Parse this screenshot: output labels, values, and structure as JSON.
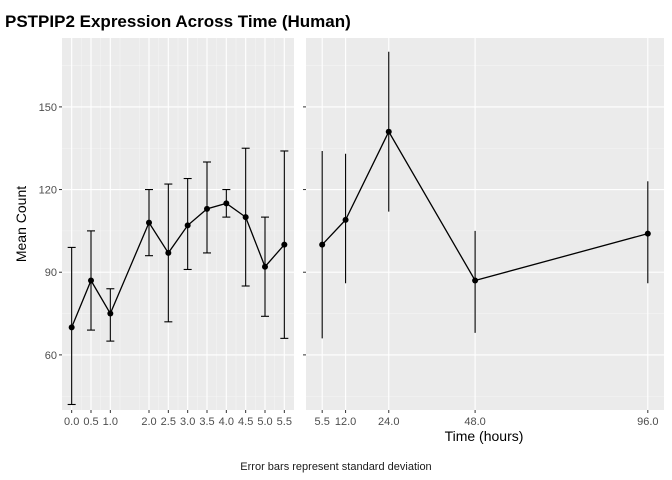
{
  "chart_data": {
    "type": "line",
    "title": "PSTPIP2 Expression Across Time (Human)",
    "xlabel": "Time (hours)",
    "ylabel": "Mean Count",
    "caption": "Error bars represent standard deviation",
    "ylim": [
      40,
      175
    ],
    "y_ticks": [
      60,
      90,
      120,
      150
    ],
    "grid": true,
    "panels": [
      {
        "x_ticks": [
          "0.0",
          "0.5",
          "1.0",
          "2.0",
          "2.5",
          "3.0",
          "3.5",
          "4.0",
          "4.5",
          "5.0",
          "5.5"
        ],
        "x_minor_ticks": [
          0.25,
          0.75,
          1.25,
          1.75,
          2.25,
          2.75,
          3.25,
          3.75,
          4.25,
          4.75,
          5.25
        ],
        "xlim": [
          -0.25,
          5.75
        ],
        "errorbar_caps": true,
        "points": [
          {
            "x": 0.0,
            "y": 70,
            "lo": 42,
            "hi": 99
          },
          {
            "x": 0.5,
            "y": 87,
            "lo": 69,
            "hi": 105
          },
          {
            "x": 1.0,
            "y": 75,
            "lo": 65,
            "hi": 84
          },
          {
            "x": 2.0,
            "y": 108,
            "lo": 96,
            "hi": 120
          },
          {
            "x": 2.5,
            "y": 97,
            "lo": 72,
            "hi": 122
          },
          {
            "x": 3.0,
            "y": 107,
            "lo": 91,
            "hi": 124
          },
          {
            "x": 3.5,
            "y": 113,
            "lo": 97,
            "hi": 130
          },
          {
            "x": 4.0,
            "y": 115,
            "lo": 110,
            "hi": 120
          },
          {
            "x": 4.5,
            "y": 110,
            "lo": 85,
            "hi": 135
          },
          {
            "x": 5.0,
            "y": 92,
            "lo": 74,
            "hi": 110
          },
          {
            "x": 5.5,
            "y": 100,
            "lo": 66,
            "hi": 134
          }
        ]
      },
      {
        "x_ticks": [
          "5.5",
          "12.0",
          "24.0",
          "48.0",
          "96.0"
        ],
        "x_minor_ticks": [],
        "xlim": [
          1.0,
          100.5
        ],
        "errorbar_caps": false,
        "points": [
          {
            "x": 5.5,
            "y": 100,
            "lo": 66,
            "hi": 134
          },
          {
            "x": 12.0,
            "y": 109,
            "lo": 86,
            "hi": 133
          },
          {
            "x": 24.0,
            "y": 141,
            "lo": 112,
            "hi": 170
          },
          {
            "x": 48.0,
            "y": 87,
            "lo": 68,
            "hi": 105
          },
          {
            "x": 96.0,
            "y": 104,
            "lo": 86,
            "hi": 123
          }
        ]
      }
    ]
  }
}
